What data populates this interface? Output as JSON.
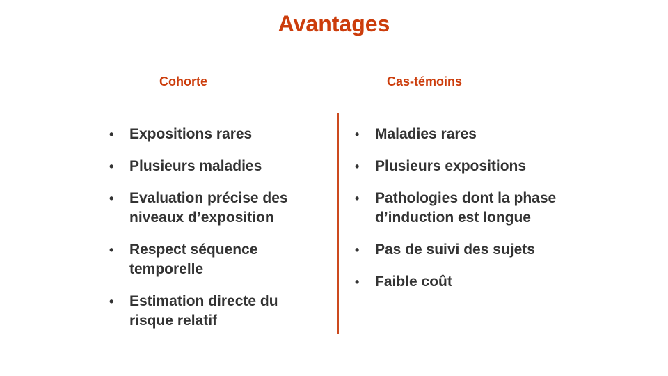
{
  "slide": {
    "title": "Avantages"
  },
  "columns": {
    "left": {
      "header": "Cohorte",
      "items": [
        "Expositions rares",
        "Plusieurs maladies",
        "Evaluation précise des niveaux d’exposition",
        "Respect séquence temporelle",
        "Estimation directe du risque relatif"
      ]
    },
    "right": {
      "header": "Cas-témoins",
      "items": [
        "Maladies rares",
        "Plusieurs expositions",
        "Pathologies dont la phase d’induction est longue",
        "Pas de suivi des sujets",
        "Faible coût"
      ]
    }
  },
  "colors": {
    "accent": "#cc3d0c",
    "text": "#333333"
  },
  "bullet_glyph": "•"
}
